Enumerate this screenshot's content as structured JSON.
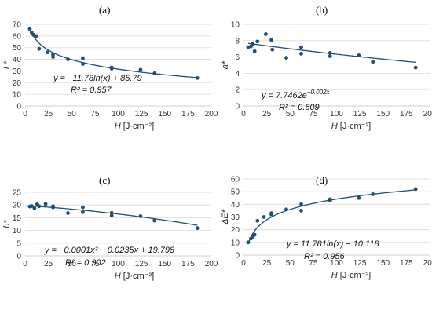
{
  "chart_data": [
    {
      "type": "scatter",
      "panel": "(a)",
      "xlabel_var": "H",
      "xlabel_unit": "[J·cm⁻²]",
      "ylabel": "L*",
      "xlim": [
        0,
        200
      ],
      "ylim": [
        0,
        70
      ],
      "xticks": [
        0,
        25,
        50,
        75,
        100,
        125,
        150,
        175,
        200
      ],
      "yticks": [
        0,
        10,
        20,
        30,
        40,
        50,
        60,
        70
      ],
      "grid": true,
      "points": {
        "x": [
          5,
          7,
          9,
          12,
          15,
          24,
          30,
          30,
          46,
          62,
          62,
          93,
          93,
          124,
          139,
          185
        ],
        "y": [
          66,
          63,
          61,
          60,
          49,
          46,
          42,
          44,
          40,
          41,
          36,
          32,
          33,
          31,
          28,
          24
        ]
      },
      "fit": {
        "kind": "log",
        "a": -11.78,
        "b": 85.79
      },
      "equation": "y = −11.78ln(x) + 85.79",
      "r2": "R² = 0.957"
    },
    {
      "type": "scatter",
      "panel": "(b)",
      "xlabel_var": "H",
      "xlabel_unit": "[J·cm⁻²]",
      "ylabel": "a*",
      "xlim": [
        0,
        200
      ],
      "ylim": [
        0,
        10
      ],
      "xticks": [
        0,
        25,
        50,
        75,
        100,
        125,
        150,
        175,
        200
      ],
      "yticks": [
        0,
        2,
        4,
        6,
        8,
        10
      ],
      "grid": true,
      "points": {
        "x": [
          5,
          8,
          10,
          12,
          15,
          24,
          30,
          31,
          46,
          62,
          62,
          93,
          93,
          124,
          139,
          185
        ],
        "y": [
          7.2,
          7.3,
          7.6,
          6.7,
          7.9,
          8.8,
          8.1,
          6.9,
          5.9,
          7.2,
          6.4,
          6.5,
          6.1,
          6.2,
          5.4,
          4.7
        ]
      },
      "fit": {
        "kind": "exp",
        "a": 7.7462,
        "b": -0.002
      },
      "equation": "y = 7.7462e",
      "equation_exp": "−0.002x",
      "r2": "R² = 0.609"
    },
    {
      "type": "scatter",
      "panel": "(c)",
      "xlabel_var": "H",
      "xlabel_unit": "[J·cm⁻²]",
      "ylabel": "b*",
      "xlim": [
        0,
        200
      ],
      "ylim": [
        0,
        25
      ],
      "xticks": [
        0,
        25,
        50,
        75,
        100,
        125,
        150,
        175,
        200
      ],
      "yticks": [
        0,
        5,
        10,
        15,
        20,
        25
      ],
      "grid": true,
      "points": {
        "x": [
          5,
          7,
          10,
          13,
          15,
          22,
          30,
          30,
          46,
          62,
          62,
          93,
          93,
          124,
          139,
          185
        ],
        "y": [
          19.4,
          19.6,
          18.7,
          20.3,
          19.5,
          20.4,
          19.1,
          19.5,
          16.8,
          19.1,
          17.2,
          16.9,
          15.8,
          15.6,
          13.9,
          10.9
        ]
      },
      "fit": {
        "kind": "poly2",
        "a": -0.0001,
        "b": -0.0235,
        "c": 19.798
      },
      "equation": "y = −0.0001x² − 0.0235x + 19.798",
      "r2": "R² = 0.902"
    },
    {
      "type": "scatter",
      "panel": "(d)",
      "xlabel_var": "H",
      "xlabel_unit": "[J·cm⁻²]",
      "ylabel": "ΔE*",
      "xlim": [
        0,
        200
      ],
      "ylim": [
        0,
        60
      ],
      "xticks": [
        0,
        25,
        50,
        75,
        100,
        125,
        150,
        175,
        200
      ],
      "yticks": [
        0,
        10,
        20,
        30,
        40,
        50,
        60
      ],
      "grid": true,
      "points": {
        "x": [
          5,
          8,
          10,
          12,
          15,
          22,
          30,
          30,
          46,
          62,
          62,
          93,
          93,
          124,
          139,
          185
        ],
        "y": [
          10,
          13,
          14,
          16,
          27,
          30,
          33,
          32,
          36,
          40,
          35,
          43,
          44,
          45,
          48,
          52
        ]
      },
      "fit": {
        "kind": "log",
        "a": 11.781,
        "b": -10.118
      },
      "equation": "y = 11.781ln(x) − 10.118",
      "r2": "R² = 0.956"
    }
  ]
}
